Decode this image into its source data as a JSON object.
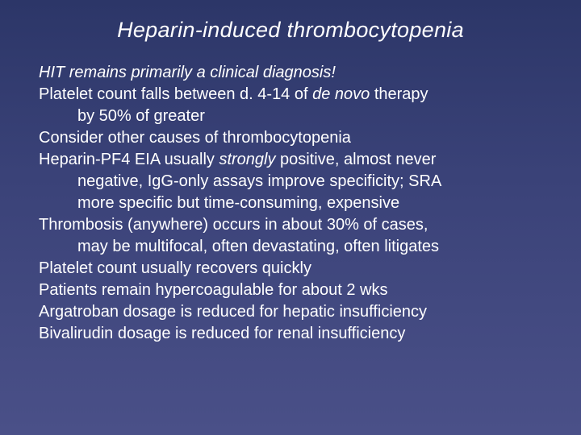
{
  "slide": {
    "title": "Heparin-induced thrombocytopenia",
    "background_top": "#2c3668",
    "background_bottom": "#4a5088",
    "text_color": "#ffffff",
    "title_fontsize": 27,
    "body_fontsize": 20,
    "lines": [
      {
        "segments": [
          {
            "text": "HIT remains primarily a clinical diagnosis!",
            "italic": true
          }
        ],
        "indent": false
      },
      {
        "segments": [
          {
            "text": "Platelet count falls between d. 4-14 of ",
            "italic": false
          },
          {
            "text": "de novo",
            "italic": true
          },
          {
            "text": " therapy",
            "italic": false
          }
        ],
        "indent": false
      },
      {
        "segments": [
          {
            "text": "by 50% of greater",
            "italic": false
          }
        ],
        "indent": true
      },
      {
        "segments": [
          {
            "text": "Consider other causes of thrombocytopenia",
            "italic": false
          }
        ],
        "indent": false
      },
      {
        "segments": [
          {
            "text": "Heparin-PF4 EIA usually ",
            "italic": false
          },
          {
            "text": "strongly",
            "italic": true
          },
          {
            "text": " positive, almost never",
            "italic": false
          }
        ],
        "indent": false
      },
      {
        "segments": [
          {
            "text": "negative, IgG-only assays improve specificity; SRA",
            "italic": false
          }
        ],
        "indent": true
      },
      {
        "segments": [
          {
            "text": "more specific but time-consuming, expensive",
            "italic": false
          }
        ],
        "indent": true
      },
      {
        "segments": [
          {
            "text": "Thrombosis (anywhere) occurs in about 30% of cases,",
            "italic": false
          }
        ],
        "indent": false
      },
      {
        "segments": [
          {
            "text": "may be multifocal, often devastating, often litigates",
            "italic": false
          }
        ],
        "indent": true
      },
      {
        "segments": [
          {
            "text": "Platelet count usually recovers quickly",
            "italic": false
          }
        ],
        "indent": false
      },
      {
        "segments": [
          {
            "text": "Patients remain hypercoagulable for about 2 wks",
            "italic": false
          }
        ],
        "indent": false
      },
      {
        "segments": [
          {
            "text": "Argatroban dosage is reduced for hepatic insufficiency",
            "italic": false
          }
        ],
        "indent": false
      },
      {
        "segments": [
          {
            "text": "Bivalirudin dosage is reduced for renal insufficiency",
            "italic": false
          }
        ],
        "indent": false
      }
    ]
  }
}
